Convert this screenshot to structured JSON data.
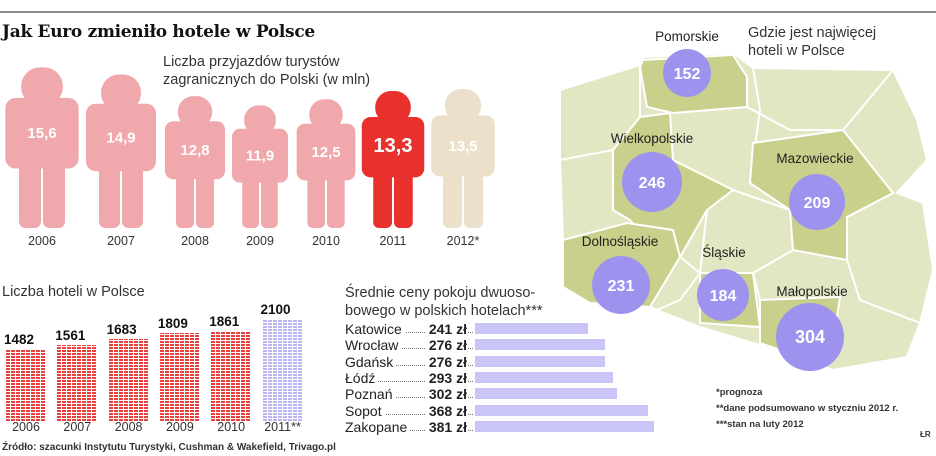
{
  "title": "Jak Euro zmieniło hotele w Polsce",
  "colors": {
    "tourists": "#f0a8ad",
    "tourists_highlight": "#e8302c",
    "tourists_forecast": "#ede0cb",
    "hotels": "#e8403a",
    "hotels_forecast": "#b9b6f2",
    "prices": "#c9c6f7",
    "map_light": "#e3e6c2",
    "map_highlight": "#c9d08b",
    "bubble": "#9d93ee"
  },
  "chart_data": [
    {
      "type": "bar",
      "title": "Liczba przyjazdów turystów zagranicznych do Polski (w mln)",
      "title_lines": [
        "Liczba przyjazdów turystów",
        "zagranicznych do Polski (w mln)"
      ],
      "categories": [
        "2006",
        "2007",
        "2008",
        "2009",
        "2010",
        "2011",
        "2012*"
      ],
      "values": [
        15.6,
        14.9,
        12.8,
        11.9,
        12.5,
        13.3,
        13.5
      ],
      "labels": [
        "15,6",
        "14,9",
        "12,8",
        "11,9",
        "12,5",
        "13,3",
        "13,5"
      ],
      "marker": "person-icon"
    },
    {
      "type": "bar",
      "title": "Liczba hoteli w Polsce",
      "categories": [
        "2006",
        "2007",
        "2008",
        "2009",
        "2010",
        "2011**"
      ],
      "values": [
        1482,
        1561,
        1683,
        1809,
        1861,
        2100
      ]
    },
    {
      "type": "bar",
      "orientation": "horizontal",
      "title": "Średnie ceny pokoju dwuosobowego w polskich hotelach***",
      "title_lines": [
        "Średnie ceny pokoju dwuoso-",
        "bowego w polskich hotelach***"
      ],
      "categories": [
        "Katowice",
        "Wrocław",
        "Gdańsk",
        "Łódź",
        "Poznań",
        "Sopot",
        "Zakopane"
      ],
      "values": [
        241,
        276,
        276,
        293,
        302,
        368,
        381
      ],
      "labels": [
        "241 zł",
        "276 zł",
        "276 zł",
        "293 zł",
        "302 zł",
        "368 zł",
        "381 zł"
      ]
    },
    {
      "type": "map",
      "title": "Gdzie jest najwięcej hoteli w Polsce",
      "title_lines": [
        "Gdzie jest najwięcej",
        "hoteli w Polsce"
      ],
      "regions": [
        {
          "name": "Pomorskie",
          "value": 152
        },
        {
          "name": "Wielkopolskie",
          "value": 246
        },
        {
          "name": "Mazowieckie",
          "value": 209
        },
        {
          "name": "Dolnośląskie",
          "value": 231
        },
        {
          "name": "Śląskie",
          "value": 184
        },
        {
          "name": "Małopolskie",
          "value": 304
        }
      ]
    }
  ],
  "footnotes": [
    "*prognoza",
    "**dane podsumowano w styczniu 2012 r.",
    "***stan na luty 2012"
  ],
  "source": "Źródło: szacunki Instytutu Turystyki, Cushman & Wakefield, Trivago.pl",
  "signature": "ŁR"
}
